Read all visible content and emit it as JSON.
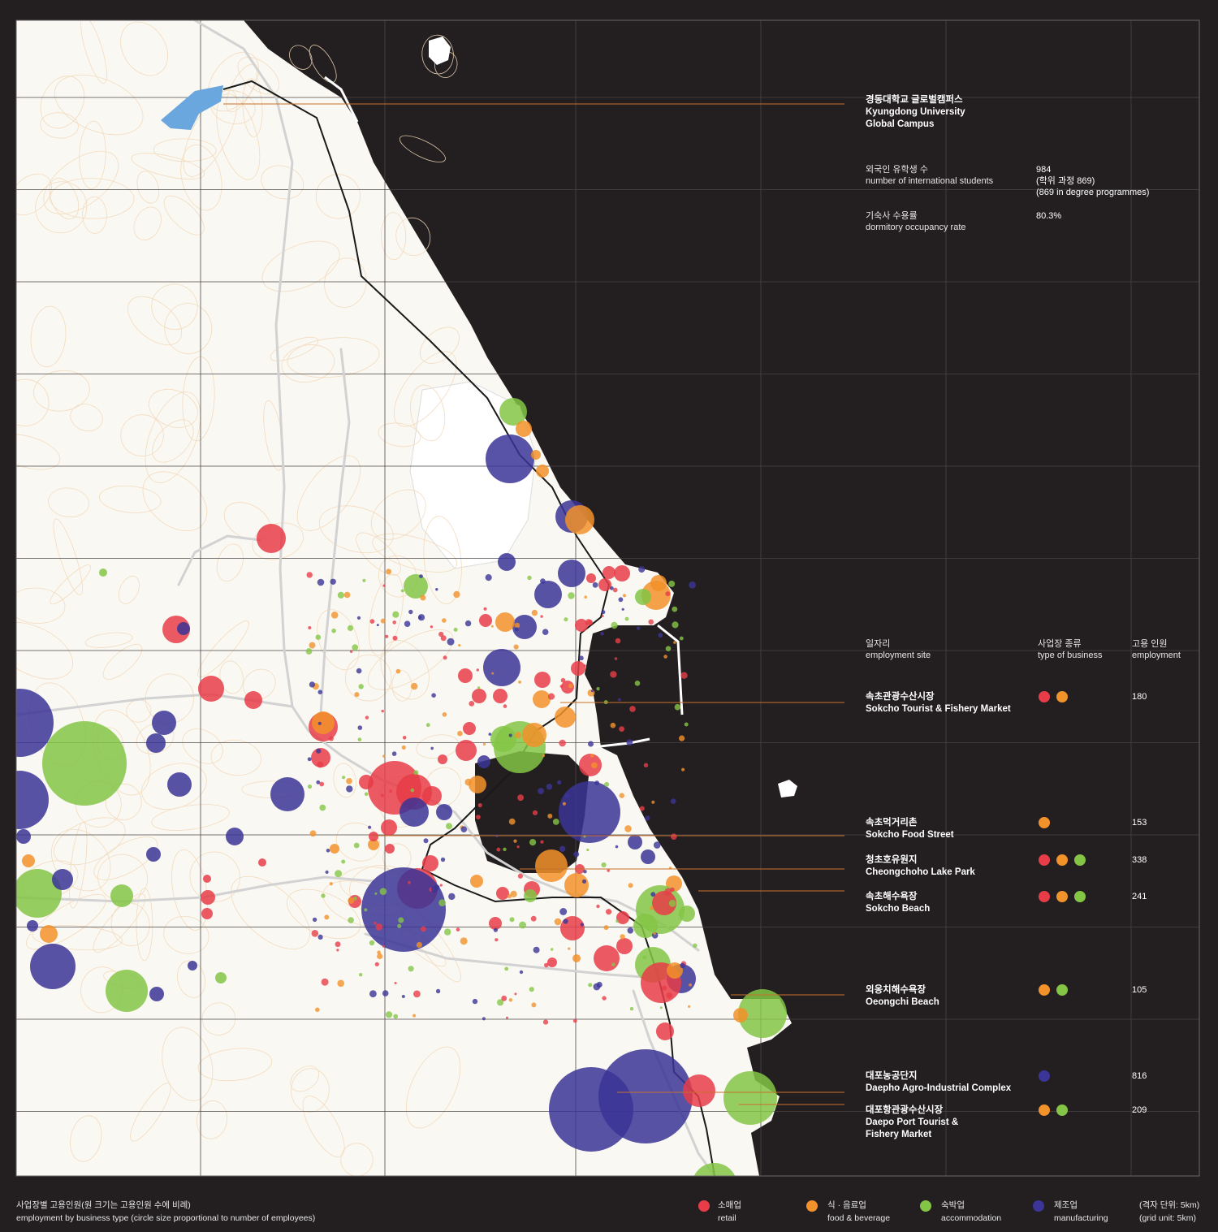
{
  "colors": {
    "background": "#231f20",
    "land": "#faf8f3",
    "contour": "#f1d8b8",
    "road": "#d2d2d2",
    "rail": "#1a1a1a",
    "leader": "#c8702a",
    "campus": "#6aa7de",
    "retail": "#e83d48",
    "food": "#f2922a",
    "accommodation": "#84c545",
    "manufacturing": "#3b3597"
  },
  "campus": {
    "name_ko": "경동대학교 글로벌캠퍼스",
    "name_en_1": "Kyungdong University",
    "name_en_2": "Global Campus",
    "students_label_ko": "외국인 유학생 수",
    "students_label_en": "number of international students",
    "students_value": "984",
    "students_value_ko": "(학위 과정 869)",
    "students_value_en": "(869 in degree programmes)",
    "dorm_label_ko": "기숙사 수용률",
    "dorm_label_en": "dormitory occupancy rate",
    "dorm_value": "80.3%"
  },
  "table": {
    "col_site_ko": "일자리",
    "col_site_en": "employment site",
    "col_type_ko": "사업장 종류",
    "col_type_en": "type of business",
    "col_emp_ko": "고용 인원",
    "col_emp_en": "employment",
    "rows": [
      {
        "name_ko": "속초관광수산시장",
        "name_en": "Sokcho Tourist & Fishery Market",
        "types": [
          "retail",
          "food"
        ],
        "employment": "180"
      },
      {
        "name_ko": "속초먹거리촌",
        "name_en": "Sokcho Food Street",
        "types": [
          "food"
        ],
        "employment": "153"
      },
      {
        "name_ko": "청초호유원지",
        "name_en": "Cheongchoho Lake Park",
        "types": [
          "retail",
          "food",
          "accommodation"
        ],
        "employment": "338"
      },
      {
        "name_ko": "속초해수욕장",
        "name_en": "Sokcho Beach",
        "types": [
          "retail",
          "food",
          "accommodation"
        ],
        "employment": "241"
      },
      {
        "name_ko": "외옹치해수욕장",
        "name_en": "Oeongchi Beach",
        "types": [
          "food",
          "accommodation"
        ],
        "employment": "105"
      },
      {
        "name_ko": "대포농공단지",
        "name_en": "Daepho Agro-Industrial Complex",
        "types": [
          "manufacturing"
        ],
        "employment": "816"
      },
      {
        "name_ko": "대포항관광수산시장",
        "name_en": "Daepo Port Tourist &",
        "name_en_2": "Fishery Market",
        "types": [
          "food",
          "accommodation"
        ],
        "employment": "209"
      }
    ]
  },
  "legend": {
    "title_ko": "사업장별 고용인원(원 크기는 고용인원 수에 비례)",
    "title_en": "employment by business type (circle size proportional to number of employees)",
    "retail_ko": "소매업",
    "retail_en": "retail",
    "food_ko": "식 · 음료업",
    "food_en": "food & beverage",
    "accommodation_ko": "숙박업",
    "accommodation_en": "accommodation",
    "manufacturing_ko": "제조업",
    "manufacturing_en": "manufacturing",
    "grid_ko": "(격자 단위: 5km)",
    "grid_en": "(grid unit: 5km)"
  }
}
